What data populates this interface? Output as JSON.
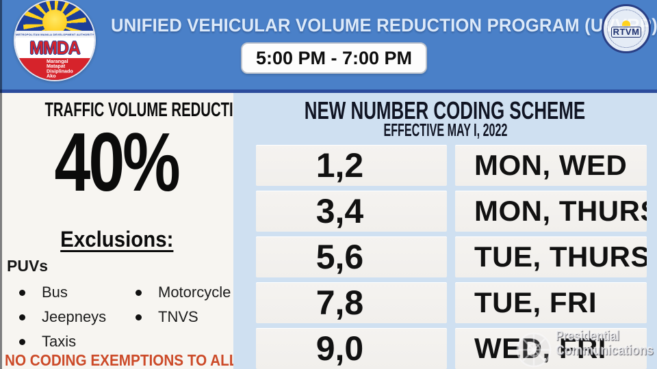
{
  "header": {
    "title": "UNIFIED VEHICULAR VOLUME REDUCTION PROGRAM (UVVRP)",
    "time_range": "5:00 PM - 7:00 PM",
    "mmda_logo": {
      "acronym": "MMDA",
      "ring_text": "METROPOLITAN MANILA DEVELOPMENT AUTHORITY",
      "motto": "Marangal\nMatapat\nDisiplinado\nAko"
    },
    "rtvm_logo": {
      "label": "RTVM"
    }
  },
  "left_panel": {
    "heading": "TRAFFIC VOLUME REDUCTION",
    "percentage": "40%",
    "exclusions_heading": "Exclusions:",
    "exclusions_group": "PUVs",
    "exclusions_col1": [
      "Bus",
      "Jeepneys",
      "Taxis"
    ],
    "exclusions_col2": [
      "Motorcycle",
      "TNVS"
    ],
    "footnote": "NO CODING EXEMPTIONS TO ALL"
  },
  "right_panel": {
    "heading": "NEW NUMBER CODING SCHEME",
    "subheading": "EFFECTIVE MAY I, 2022",
    "table": {
      "rows": [
        {
          "plates": "1,2",
          "days": "MON, WED"
        },
        {
          "plates": "3,4",
          "days": "MON, THURS"
        },
        {
          "plates": "5,6",
          "days": "TUE, THURS"
        },
        {
          "plates": "7,8",
          "days": "TUE, FRI"
        },
        {
          "plates": "9,0",
          "days": "WED, FRI"
        }
      ]
    }
  },
  "watermark": {
    "line1": "Presidential",
    "line2": "Communications"
  },
  "colors": {
    "header_blue": "#4a80c8",
    "header_border_navy": "#2c4c9c",
    "panel_white": "#f7f5f1",
    "panel_blue": "#cfe0f1",
    "cell_bg": "#f1efec",
    "title_text": "#dce9f9",
    "alert_orange": "#cc4a28",
    "mmda_blue": "#1d3e99",
    "mmda_red": "#d6232b",
    "sun_yellow": "#ffd21e"
  }
}
